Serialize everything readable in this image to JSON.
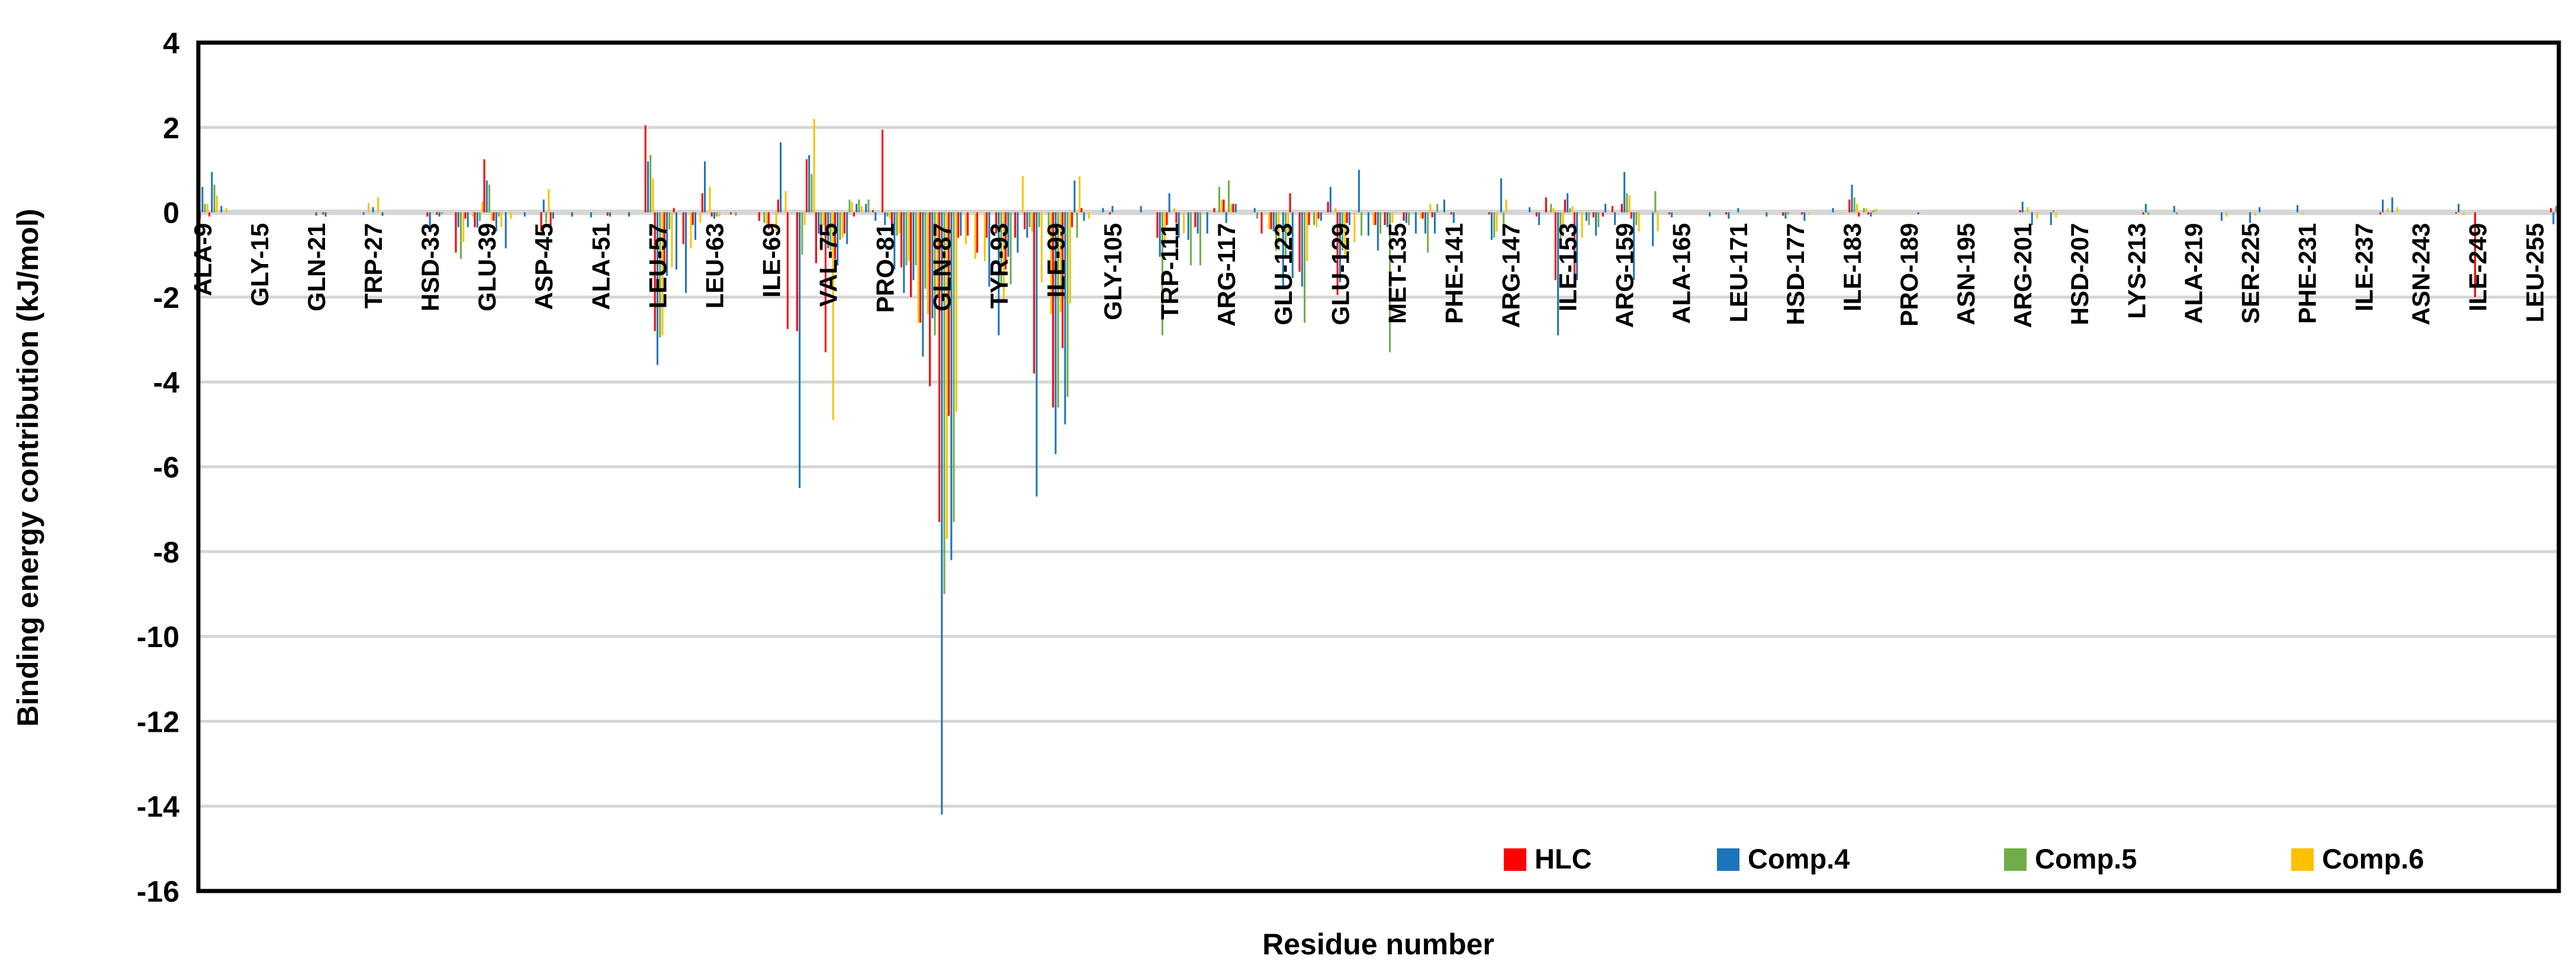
{
  "chart_data": {
    "type": "bar",
    "title": "",
    "xlabel": "Residue number",
    "ylabel": "Binding energy contribution (kJ/mol)",
    "ylim": [
      -16,
      4
    ],
    "yticks": [
      4,
      2,
      0,
      -2,
      -4,
      -6,
      -8,
      -10,
      -12,
      -14,
      -16
    ],
    "grid": "horizontal",
    "gridline_color": "#D6D6D6",
    "axis_border_color": "#000000",
    "legend_position": "inside-bottom-right",
    "residue_range": [
      9,
      257
    ],
    "x_tick_step": 6,
    "x_tick_labels": [
      "ALA-9",
      "GLY-15",
      "GLN-21",
      "TRP-27",
      "HSD-33",
      "GLU-39",
      "ASP-45",
      "ALA-51",
      "LEU-57",
      "LEU-63",
      "ILE-69",
      "VAL-75",
      "PRO-81",
      "GLN-87",
      "TYR-93",
      "ILE-99",
      "GLY-105",
      "TRP-111",
      "ARG-117",
      "GLU-123",
      "GLU-129",
      "MET-135",
      "PHE-141",
      "ARG-147",
      "ILE-153",
      "ARG-159",
      "ALA-165",
      "LEU-171",
      "HSD-177",
      "ILE-183",
      "PRO-189",
      "ASN-195",
      "ARG-201",
      "HSD-207",
      "LYS-213",
      "ALA-219",
      "SER-225",
      "PHE-231",
      "ILE-237",
      "ASN-243",
      "ILE-249",
      "LEU-255"
    ],
    "series": [
      {
        "name": "HLC",
        "color": "#FF0000"
      },
      {
        "name": "Comp.4",
        "color": "#1B75BB"
      },
      {
        "name": "Comp.5",
        "color": "#70AD47"
      },
      {
        "name": "Comp.6",
        "color": "#FFC000"
      }
    ],
    "values_note": "residue -> [HLC, Comp.4, Comp.5, Comp.6] in kJ/mol; residues not listed are ~0",
    "values": {
      "9": [
        -0.15,
        0.6,
        0.2,
        0.2
      ],
      "10": [
        -0.1,
        0.95,
        0.65,
        0.4
      ],
      "11": [
        0,
        0.15,
        0,
        0.1
      ],
      "21": [
        0,
        -0.08,
        0,
        0
      ],
      "22": [
        -0.05,
        -0.1,
        0,
        0
      ],
      "26": [
        0,
        -0.06,
        0,
        0.22
      ],
      "27": [
        0,
        0.12,
        0,
        0.35
      ],
      "28": [
        0,
        -0.08,
        0,
        0
      ],
      "33": [
        -0.1,
        -0.42,
        0,
        0
      ],
      "34": [
        -0.06,
        -0.1,
        -0.04,
        0
      ],
      "36": [
        -0.95,
        -0.35,
        -1.1,
        -0.7
      ],
      "37": [
        -0.15,
        -0.35,
        0,
        -0.1
      ],
      "38": [
        -0.35,
        -0.36,
        -0.2,
        0.25
      ],
      "39": [
        1.25,
        0.75,
        0.65,
        -0.2
      ],
      "40": [
        -0.2,
        -0.45,
        -0.1,
        -0.35
      ],
      "41": [
        0,
        -0.85,
        0,
        -0.15
      ],
      "43": [
        0,
        -0.1,
        0,
        0
      ],
      "45": [
        -0.45,
        0.3,
        -0.25,
        0.55
      ],
      "46": [
        -0.45,
        -0.15,
        0,
        0
      ],
      "48": [
        0,
        -0.1,
        0,
        0
      ],
      "50": [
        0,
        -0.12,
        0,
        0
      ],
      "52": [
        -0.08,
        -0.1,
        0,
        0
      ],
      "54": [
        0,
        -0.1,
        0,
        0
      ],
      "56": [
        2.05,
        1.2,
        1.35,
        0.8
      ],
      "57": [
        -2.8,
        -3.6,
        -2.95,
        -2.9
      ],
      "58": [
        -1.4,
        -1.5,
        -0.4,
        -1.3
      ],
      "59": [
        0.1,
        -1.35,
        0,
        0
      ],
      "60": [
        -0.75,
        -1.9,
        0,
        -0.85
      ],
      "61": [
        -0.3,
        -0.65,
        0,
        -0.25
      ],
      "62": [
        0.45,
        1.2,
        0,
        0.6
      ],
      "63": [
        -0.1,
        -0.15,
        -0.1,
        -0.1
      ],
      "65": [
        -0.05,
        0,
        -0.08,
        0
      ],
      "68": [
        -0.2,
        0,
        -0.25,
        -0.35
      ],
      "69": [
        -0.4,
        0,
        0,
        -0.45
      ],
      "70": [
        0.3,
        1.65,
        0,
        0.5
      ],
      "71": [
        -2.75,
        0,
        0,
        0
      ],
      "72": [
        -2.8,
        -6.5,
        -1.0,
        -0.3
      ],
      "73": [
        1.25,
        1.35,
        0.9,
        2.2
      ],
      "74": [
        -1.2,
        -0.5,
        -0.9,
        -0.3
      ],
      "75": [
        -3.3,
        -0.85,
        -0.9,
        -4.9
      ],
      "76": [
        -1.1,
        -1.25,
        -0.65,
        -0.6
      ],
      "77": [
        -0.5,
        -0.75,
        0.3,
        0.25
      ],
      "78": [
        -0.1,
        0.2,
        0.3,
        0.15
      ],
      "79": [
        0,
        0.2,
        0.3,
        0
      ],
      "80": [
        0.05,
        -0.2,
        0,
        0
      ],
      "81": [
        1.95,
        -0.3,
        -0.1,
        -0.15
      ],
      "82": [
        -0.5,
        -1.35,
        -0.55,
        -0.5
      ],
      "83": [
        -1.3,
        -1.9,
        -1.25,
        -1.15
      ],
      "84": [
        -2.0,
        -1.6,
        -1.25,
        -2.6
      ],
      "85": [
        -2.6,
        -3.4,
        -1.8,
        -2.4
      ],
      "86": [
        -4.1,
        -2.5,
        -2.9,
        -2.0
      ],
      "87": [
        -7.3,
        -14.2,
        -9.0,
        -7.7
      ],
      "88": [
        -4.8,
        -8.2,
        -7.3,
        -4.7
      ],
      "89": [
        -0.6,
        -0.55,
        0,
        -0.75
      ],
      "90": [
        -0.55,
        0,
        0,
        -1.1
      ],
      "91": [
        -0.95,
        0,
        0,
        -1.15
      ],
      "92": [
        -0.6,
        -1.75,
        0,
        0
      ],
      "93": [
        -0.5,
        -2.9,
        -1.7,
        -2.1
      ],
      "94": [
        -1.35,
        -1.05,
        -1.7,
        0
      ],
      "95": [
        -0.6,
        -0.95,
        0,
        0.85
      ],
      "96": [
        -0.4,
        -0.6,
        -0.35,
        -0.45
      ],
      "97": [
        -3.8,
        -6.7,
        -0.35,
        -1.65
      ],
      "98": [
        0,
        0,
        -0.5,
        -2.4
      ],
      "99": [
        -4.6,
        -5.7,
        -4.6,
        -2.35
      ],
      "100": [
        -3.2,
        -5.0,
        -4.35,
        -2.15
      ],
      "101": [
        -0.35,
        0.75,
        -0.6,
        0.85
      ],
      "102": [
        0.1,
        -0.2,
        0,
        -0.15
      ],
      "104": [
        0,
        0.1,
        0,
        0
      ],
      "105": [
        -0.05,
        0.15,
        0,
        0
      ],
      "108": [
        0,
        0.15,
        0,
        0
      ],
      "110": [
        -0.6,
        -1.05,
        -2.9,
        -0.75
      ],
      "111": [
        -0.3,
        0.45,
        0,
        0.1
      ],
      "112": [
        -0.25,
        -0.6,
        0,
        -0.5
      ],
      "113": [
        0,
        -0.65,
        -1.25,
        0
      ],
      "114": [
        -0.35,
        -0.5,
        -1.25,
        0
      ],
      "115": [
        0,
        -0.5,
        0,
        0
      ],
      "116": [
        0.1,
        0,
        0.6,
        0.3
      ],
      "117": [
        0.3,
        -0.25,
        0.75,
        0.2
      ],
      "118": [
        0.2,
        0.2,
        0,
        0
      ],
      "120": [
        0,
        0.1,
        -0.15,
        0
      ],
      "121": [
        -0.5,
        0,
        0,
        -0.4
      ],
      "122": [
        -0.4,
        -0.45,
        -0.9,
        -0.75
      ],
      "123": [
        0,
        -1.8,
        -1.1,
        -0.5
      ],
      "124": [
        0.45,
        -1.55,
        0,
        0
      ],
      "125": [
        -1.4,
        -1.75,
        -2.6,
        -1.15
      ],
      "126": [
        -0.3,
        0,
        -0.3,
        -0.35
      ],
      "127": [
        -0.15,
        -0.2,
        0,
        0
      ],
      "128": [
        0.25,
        0.6,
        0,
        0.1
      ],
      "129": [
        -1.95,
        -1.65,
        -0.9,
        -1.0
      ],
      "130": [
        -0.25,
        -0.3,
        0,
        -0.7
      ],
      "131": [
        0,
        1.0,
        -0.55,
        0
      ],
      "132": [
        0,
        -0.55,
        0,
        -0.3
      ],
      "133": [
        -0.3,
        -0.9,
        -0.5,
        0
      ],
      "134": [
        -0.3,
        -0.35,
        -3.3,
        -0.25
      ],
      "136": [
        -0.2,
        -0.25,
        -0.3,
        0
      ],
      "137": [
        0,
        -0.5,
        0,
        -0.15
      ],
      "138": [
        -0.15,
        -0.5,
        -0.95,
        0.2
      ],
      "139": [
        -0.12,
        -0.5,
        0.2,
        0
      ],
      "140": [
        0,
        0.3,
        0,
        0
      ],
      "141": [
        -0.05,
        -0.25,
        0,
        0
      ],
      "145": [
        -0.05,
        -0.65,
        -0.6,
        -0.45
      ],
      "146": [
        0,
        0.8,
        -0.35,
        0.3
      ],
      "149": [
        0,
        0.12,
        0,
        0
      ],
      "150": [
        -0.1,
        -0.3,
        0,
        0
      ],
      "151": [
        0.35,
        0,
        0.2,
        0.1
      ],
      "152": [
        -1.6,
        -2.9,
        -0.7,
        -0.45
      ],
      "153": [
        0.3,
        0.45,
        0.1,
        0.15
      ],
      "154": [
        -1.65,
        -1.6,
        0,
        -0.6
      ],
      "155": [
        0,
        -0.2,
        -0.3,
        0
      ],
      "156": [
        -0.12,
        -0.55,
        -0.35,
        0
      ],
      "157": [
        -0.1,
        0.2,
        0,
        0
      ],
      "158": [
        0.15,
        -0.3,
        0,
        0
      ],
      "159": [
        0.2,
        0.95,
        0.45,
        0.4
      ],
      "160": [
        -0.15,
        -1.6,
        -0.3,
        -0.45
      ],
      "162": [
        0,
        -0.8,
        0.5,
        -0.45
      ],
      "164": [
        -0.05,
        -0.12,
        0,
        0
      ],
      "168": [
        0,
        -0.1,
        0,
        0
      ],
      "170": [
        -0.05,
        -0.15,
        0,
        0
      ],
      "171": [
        0,
        0.1,
        0,
        0
      ],
      "174": [
        0,
        -0.1,
        0,
        0
      ],
      "176": [
        -0.08,
        -0.15,
        -0.05,
        0
      ],
      "178": [
        -0.05,
        -0.2,
        0,
        -0.05
      ],
      "181": [
        0,
        0.1,
        0,
        0
      ],
      "183": [
        0.3,
        0.65,
        0.35,
        0.2
      ],
      "184": [
        -0.1,
        0,
        0.1,
        0.1
      ],
      "185": [
        -0.05,
        -0.1,
        0.05,
        0.08
      ],
      "190": [
        0,
        -0.05,
        0,
        0
      ],
      "201": [
        0.05,
        0.25,
        0,
        0.12
      ],
      "202": [
        0,
        -0.3,
        0,
        -0.15
      ],
      "204": [
        0,
        -0.3,
        0.05,
        -0.12
      ],
      "214": [
        -0.05,
        0.2,
        -0.06,
        0
      ],
      "217": [
        0,
        0.15,
        -0.05,
        0
      ],
      "222": [
        0,
        -0.2,
        0,
        -0.1
      ],
      "225": [
        0,
        -0.25,
        0,
        -0.08
      ],
      "226": [
        0,
        0.12,
        0,
        0
      ],
      "230": [
        0,
        0.17,
        0,
        -0.05
      ],
      "239": [
        -0.05,
        0.3,
        0,
        0.1
      ],
      "240": [
        0,
        0.35,
        0,
        0.12
      ],
      "247": [
        -0.03,
        0.2,
        0,
        -0.07
      ],
      "249": [
        -2.0,
        0,
        0,
        0
      ],
      "257": [
        0.1,
        -0.28,
        0.15,
        -0.12
      ]
    }
  },
  "legend": {
    "items": [
      {
        "label": "HLC",
        "color": "#FF0000"
      },
      {
        "label": "Comp.4",
        "color": "#1B75BB"
      },
      {
        "label": "Comp.5",
        "color": "#70AD47"
      },
      {
        "label": "Comp.6",
        "color": "#FFC000"
      }
    ]
  }
}
